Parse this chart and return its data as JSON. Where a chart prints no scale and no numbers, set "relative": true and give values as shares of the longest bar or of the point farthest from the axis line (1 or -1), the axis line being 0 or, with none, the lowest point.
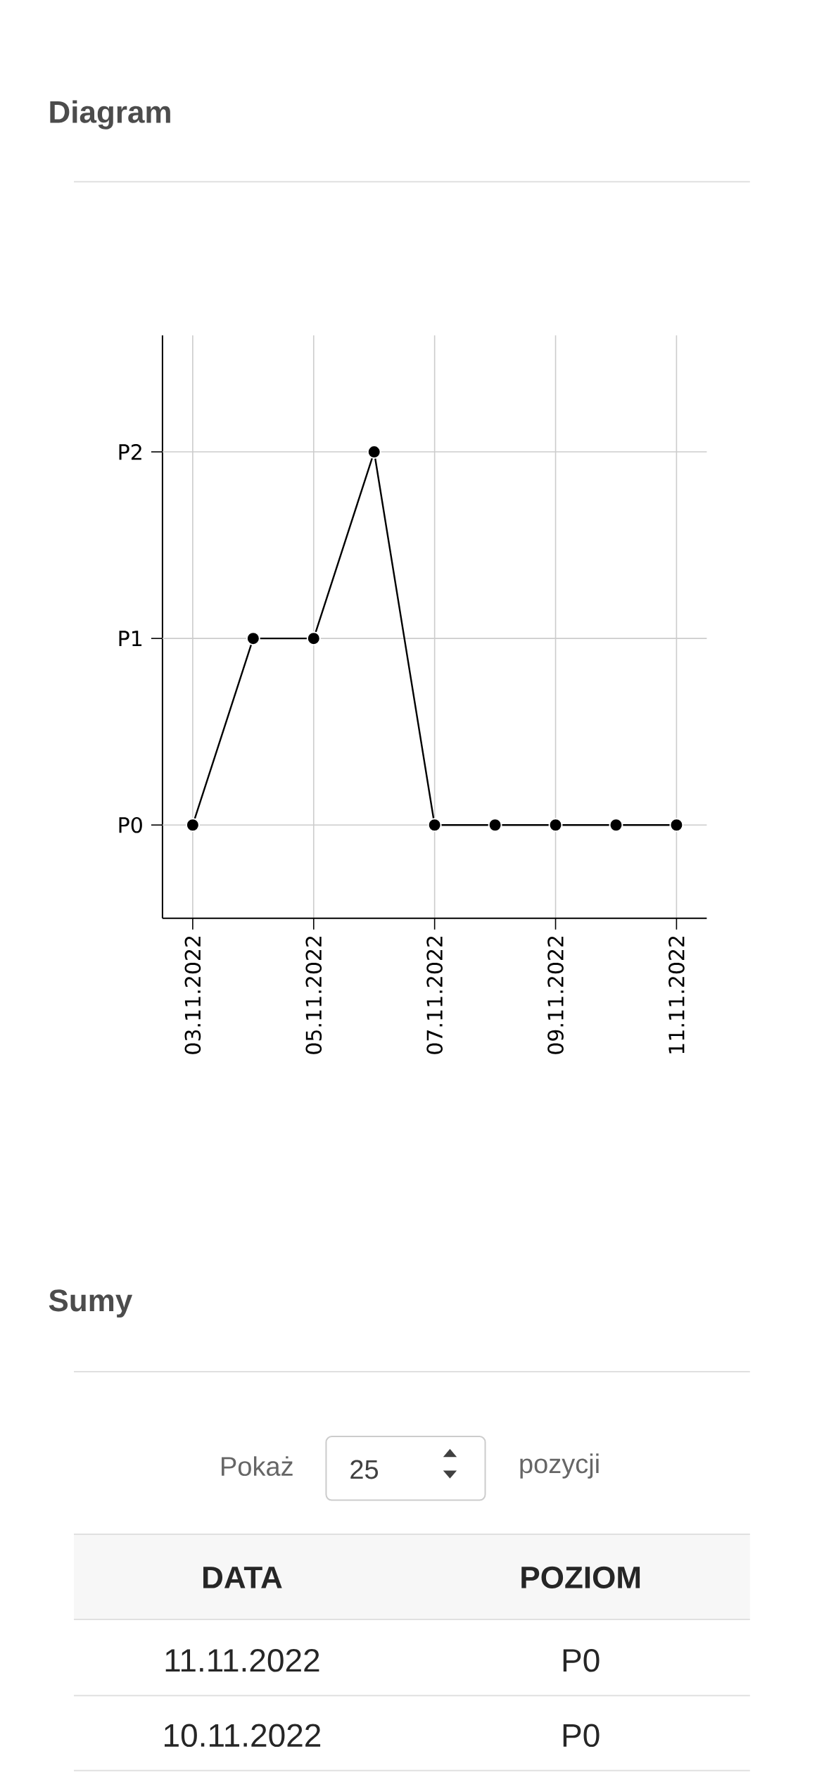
{
  "chart_data": {
    "type": "line",
    "title": "Diagram",
    "x": [
      "2022-11-03",
      "2022-11-04",
      "2022-11-05",
      "2022-11-06",
      "2022-11-07",
      "2022-11-08",
      "2022-11-09",
      "2022-11-10",
      "2022-11-11"
    ],
    "series": [
      {
        "color": "#000000",
        "values": [
          0.2,
          0.6,
          0.6,
          1,
          0.2,
          0.2,
          0.2,
          0.2,
          0.2
        ]
      }
    ],
    "relative": true,
    "xlim": [
      "2022-11-02T12:00",
      "2022-11-11T12:00"
    ],
    "xticks": [
      {
        "value": "2022-11-03",
        "label": "03.11.2022"
      },
      {
        "value": "2022-11-05",
        "label": "05.11.2022"
      },
      {
        "value": "2022-11-07",
        "label": "07.11.2022"
      },
      {
        "value": "2022-11-09",
        "label": "09.11.2022"
      },
      {
        "value": "2022-11-11",
        "label": "11.11.2022"
      }
    ],
    "ref_lines": [
      {
        "axis": "y",
        "value": 0.2,
        "label": "P0"
      },
      {
        "axis": "y",
        "value": 0.6,
        "label": "P1"
      },
      {
        "axis": "y",
        "value": 1,
        "label": "P2"
      }
    ],
    "grid": "x",
    "marker": "circle",
    "line_style": "solid",
    "annotations": [
      "Sumy",
      "Pokaż",
      "25",
      "pozycji",
      "DATA",
      "POZIOM",
      "11.11.2022",
      "P0",
      "10.11.2022",
      "P0"
    ]
  }
}
